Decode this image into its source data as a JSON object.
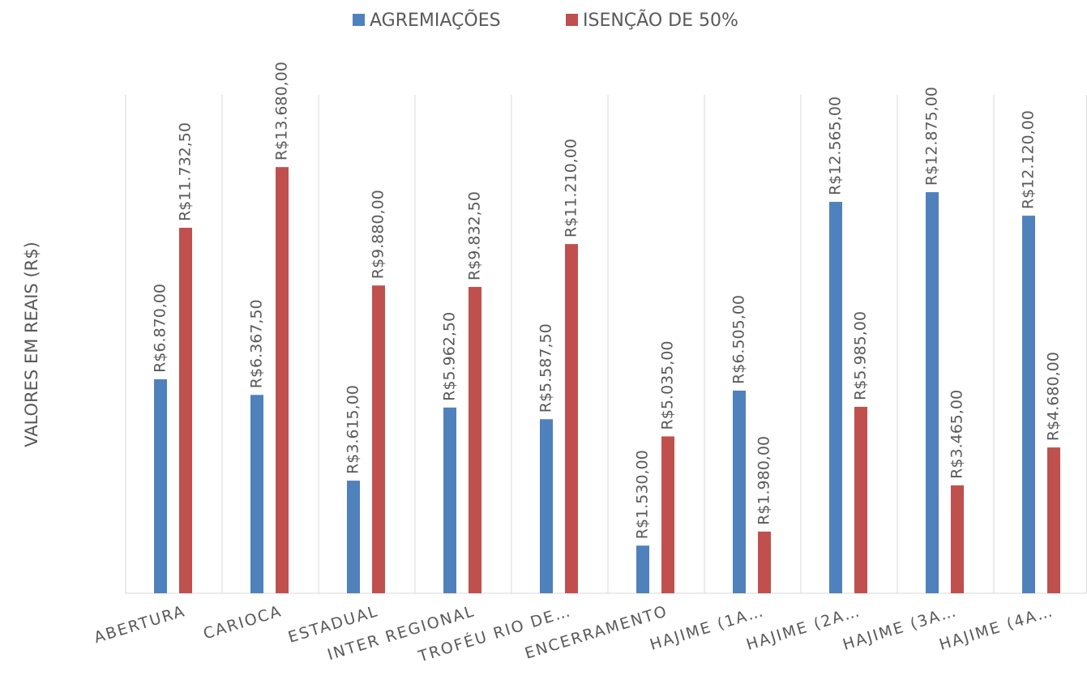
{
  "chart_data": {
    "type": "bar",
    "y_label": "VALORES EM REAIS (R$)",
    "categories": [
      "ABERTURA",
      "CARIOCA",
      "ESTADUAL",
      "INTER REGIONAL",
      "TROFÉU RIO DE…",
      "ENCERRAMENTO",
      "HAJIME (1A…",
      "HAJIME (2A…",
      "HAJIME (3A…",
      "HAJIME (4A…"
    ],
    "series": [
      {
        "name": "AGREMIAÇÕES",
        "color": "#4f81bd",
        "values": [
          6870,
          6367.5,
          3615,
          5962.5,
          5587.5,
          1530,
          6505,
          12565,
          12875,
          12120
        ],
        "value_labels": [
          "R$6.870,00",
          "R$6.367,50",
          "R$3.615,00",
          "R$5.962,50",
          "R$5.587,50",
          "R$1.530,00",
          "R$6.505,00",
          "R$12.565,00",
          "R$12.875,00",
          "R$12.120,00"
        ]
      },
      {
        "name": "ISENÇÃO DE 50%",
        "color": "#c0504d",
        "values": [
          11732.5,
          13680,
          9880,
          9832.5,
          11210,
          5035,
          1980,
          5985,
          3465,
          4680
        ],
        "value_labels": [
          "R$11.732,50",
          "R$13.680,00",
          "R$9.880,00",
          "R$9.832,50",
          "R$11.210,00",
          "R$5.035,00",
          "R$1.980,00",
          "R$5.985,00",
          "R$3.465,00",
          "R$4.680,00"
        ]
      }
    ],
    "ylim": [
      0,
      16000
    ],
    "category_separators": true,
    "legend": "top"
  }
}
